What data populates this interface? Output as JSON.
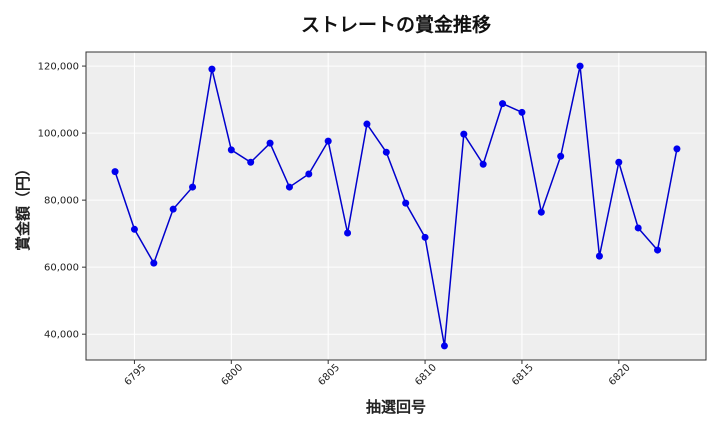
{
  "chart_data": {
    "type": "line",
    "title": "ストレートの賞金推移",
    "xlabel": "抽選回号",
    "ylabel": "賞金額（円）",
    "x": [
      6794,
      6795,
      6796,
      6797,
      6798,
      6799,
      6800,
      6801,
      6802,
      6803,
      6804,
      6805,
      6806,
      6807,
      6808,
      6809,
      6810,
      6811,
      6812,
      6813,
      6814,
      6815,
      6816,
      6817,
      6818,
      6819,
      6820,
      6821,
      6822,
      6823
    ],
    "series": [
      {
        "values": [
          88500,
          71300,
          61200,
          77300,
          83900,
          119100,
          95000,
          91300,
          97000,
          83900,
          87800,
          97600,
          70200,
          102700,
          94300,
          79100,
          68900,
          36500,
          99700,
          90700,
          108800,
          106200,
          76400,
          93100,
          120000,
          63300,
          91300,
          71700,
          65100,
          95300
        ]
      }
    ],
    "xticks": [
      6795,
      6800,
      6805,
      6810,
      6815,
      6820
    ],
    "yticks": [
      40000,
      60000,
      80000,
      100000,
      120000
    ],
    "ytick_labels": [
      "40,000",
      "60,000",
      "80,000",
      "100,000",
      "120,000"
    ],
    "xlim": [
      6792.5,
      6824.5
    ],
    "ylim": [
      32300,
      124200
    ],
    "grid": true,
    "colors": {
      "line": "#0000cd",
      "marker": "#0000ee",
      "plot_bg": "#eeeeee",
      "grid": "#ffffff"
    }
  }
}
